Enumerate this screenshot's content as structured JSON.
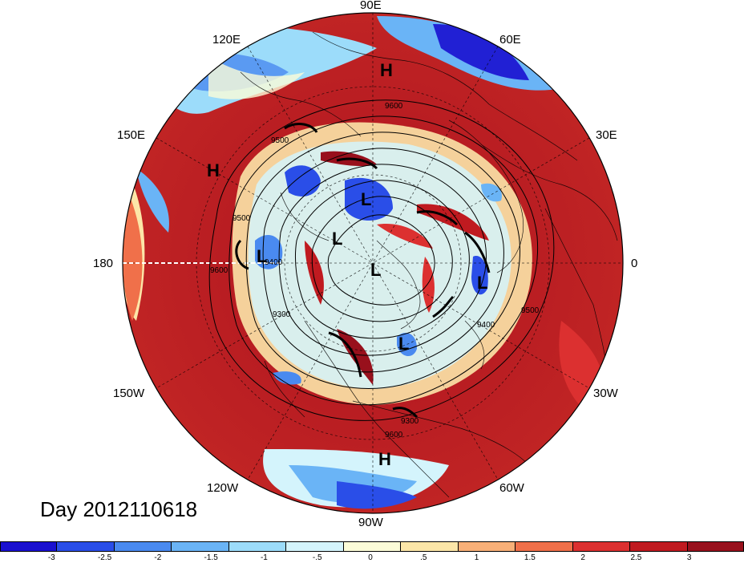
{
  "map": {
    "projection": "north-polar-stereographic",
    "longitude_labels": [
      {
        "text": "90E"
      },
      {
        "text": "60E"
      },
      {
        "text": "30E"
      },
      {
        "text": "0"
      },
      {
        "text": "30W"
      },
      {
        "text": "60W"
      },
      {
        "text": "90W"
      },
      {
        "text": "120W"
      },
      {
        "text": "150W"
      },
      {
        "text": "180"
      },
      {
        "text": "150E"
      },
      {
        "text": "120E"
      }
    ],
    "pressure_markers": [
      "H",
      "H",
      "H",
      "L",
      "L",
      "L",
      "L",
      "L",
      "L"
    ],
    "contour_labels": [
      "9600",
      "9500",
      "9400",
      "9300",
      "9500",
      "9600",
      "9500",
      "9400",
      "9300",
      "9600"
    ],
    "date_label": "Day 2012110618"
  },
  "colorbar": {
    "colors": [
      "#1a10d0",
      "#2a4ee8",
      "#4a8af0",
      "#6ab4f6",
      "#9cdcfa",
      "#d4f4fc",
      "#fcfcd8",
      "#fce6a8",
      "#f8b078",
      "#f0704a",
      "#dc3030",
      "#c01a20",
      "#98101c"
    ],
    "tick_labels": [
      "-3",
      "-2.5",
      "-2",
      "-1.5",
      "-1",
      "-.5",
      "0",
      ".5",
      "1",
      "1.5",
      "2",
      "2.5",
      "3"
    ]
  }
}
